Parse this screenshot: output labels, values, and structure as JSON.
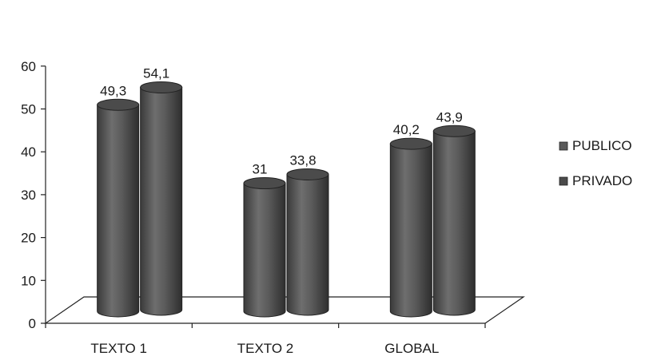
{
  "chart_data": {
    "type": "bar",
    "categories": [
      "TEXTO 1",
      "TEXTO 2",
      "GLOBAL"
    ],
    "series": [
      {
        "name": "PUBLICO",
        "values": [
          49.3,
          31,
          40.2
        ],
        "labels": [
          "49,3",
          "31",
          "40,2"
        ],
        "color": "#5a5a5a"
      },
      {
        "name": "PRIVADO",
        "values": [
          54.1,
          33.8,
          43.9
        ],
        "labels": [
          "54,1",
          "33,8",
          "43,9"
        ],
        "color": "#4a4a4a"
      }
    ],
    "yticks": [
      0,
      10,
      20,
      30,
      40,
      50,
      60
    ],
    "ylim": [
      0,
      60
    ],
    "legend_position": "right",
    "grid": false,
    "style": "3d-cylinder"
  }
}
